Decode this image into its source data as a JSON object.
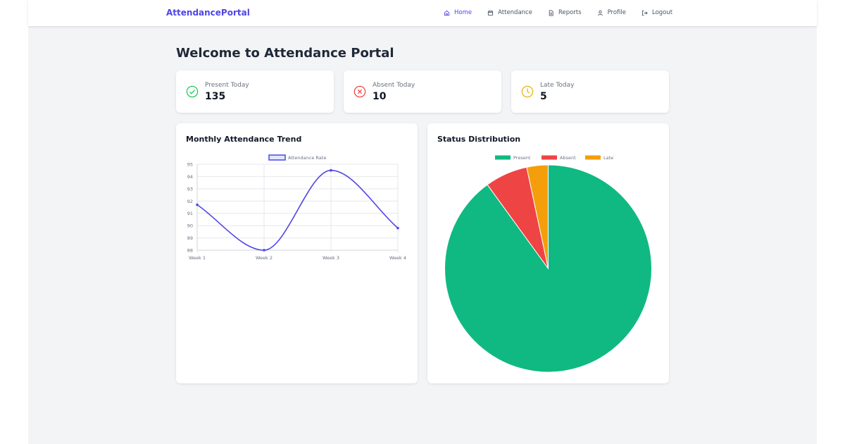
{
  "brand": "AttendancePortal",
  "nav": {
    "items": [
      {
        "label": "Home"
      },
      {
        "label": "Attendance"
      },
      {
        "label": "Reports"
      },
      {
        "label": "Profile"
      },
      {
        "label": "Logout"
      }
    ]
  },
  "page_title": "Welcome to Attendance Portal",
  "stats": [
    {
      "label": "Present Today",
      "value": "135",
      "color": "#22c55e",
      "icon": "check-circle-icon"
    },
    {
      "label": "Absent Today",
      "value": "10",
      "color": "#ef4444",
      "icon": "x-circle-icon"
    },
    {
      "label": "Late Today",
      "value": "5",
      "color": "#eab308",
      "icon": "clock-icon"
    }
  ],
  "trend": {
    "title": "Monthly Attendance Trend"
  },
  "distribution": {
    "title": "Status Distribution"
  },
  "chart_data": [
    {
      "type": "line",
      "title": "Monthly Attendance Trend",
      "categories": [
        "Week 1",
        "Week 2",
        "Week 3",
        "Week 4"
      ],
      "series": [
        {
          "name": "Attendance Rate",
          "values": [
            91.7,
            88.0,
            94.5,
            89.8
          ],
          "color": "#4f46e5"
        }
      ],
      "yticks": [
        "88",
        "89",
        "90",
        "91",
        "92",
        "93",
        "94",
        "95"
      ],
      "ylim": [
        88,
        95
      ],
      "grid": true,
      "legend": "top-center"
    },
    {
      "type": "pie",
      "title": "Status Distribution",
      "labels": [
        "Present",
        "Absent",
        "Late"
      ],
      "values": [
        135,
        10,
        5
      ],
      "colors": [
        "#10b981",
        "#ef4444",
        "#f59e0b"
      ],
      "legend": "top-center"
    }
  ]
}
